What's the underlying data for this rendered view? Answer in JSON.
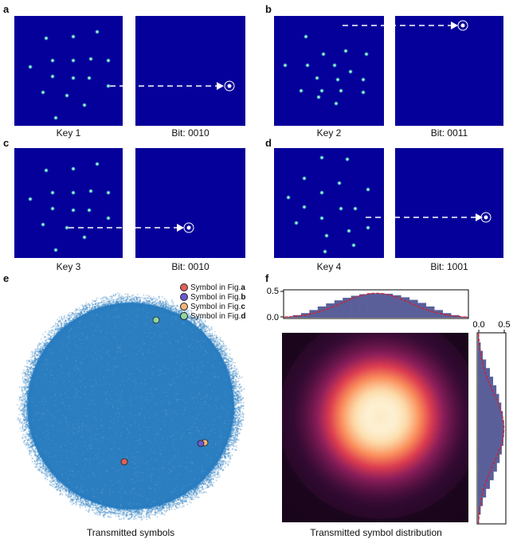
{
  "panels": {
    "a": {
      "letter": "a",
      "key_label": "Key 1",
      "bit_label": "Bit: 0010"
    },
    "b": {
      "letter": "b",
      "key_label": "Key 2",
      "bit_label": "Bit: 0011"
    },
    "c": {
      "letter": "c",
      "key_label": "Key 3",
      "bit_label": "Bit: 0010"
    },
    "d": {
      "letter": "d",
      "key_label": "Key 4",
      "bit_label": "Bit: 1001"
    },
    "e": {
      "letter": "e",
      "caption": "Transmitted symbols"
    },
    "f": {
      "letter": "f",
      "caption": "Transmitted symbol distribution"
    }
  },
  "legend": [
    {
      "prefix": "Symbol in Fig. ",
      "fig": "a",
      "color": "#e0605a"
    },
    {
      "prefix": "Symbol in Fig. ",
      "fig": "b",
      "color": "#6a5ad0"
    },
    {
      "prefix": "Symbol in Fig. ",
      "fig": "c",
      "color": "#f2b27a"
    },
    {
      "prefix": "Symbol in Fig. ",
      "fig": "d",
      "color": "#8fd6a0"
    }
  ],
  "colors": {
    "square_bg": "#06009a",
    "scatter": "#2b7ec0",
    "hist_fill": "#5a5f9a",
    "fit_line": "#e0181e"
  },
  "chart_data": [
    {
      "type": "histogram",
      "orientation": "vertical",
      "yticks": [
        "0.5",
        "0.0"
      ],
      "ylim": [
        0,
        0.5
      ]
    },
    {
      "type": "histogram",
      "orientation": "horizontal",
      "xticks": [
        "0.0",
        "0.5"
      ],
      "xlim": [
        0,
        0.5
      ]
    }
  ]
}
